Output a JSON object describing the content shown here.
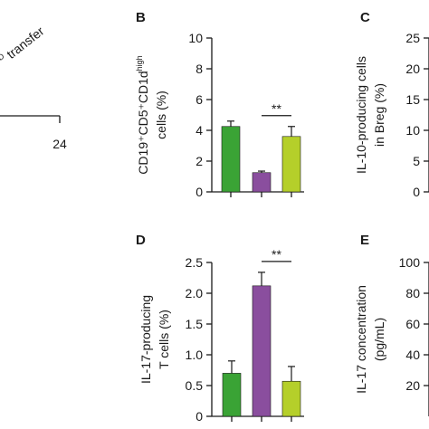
{
  "panel_a": {
    "annotation": "transfer",
    "annotation_prefix": "D",
    "x_tick": "24"
  },
  "chart_data": [
    {
      "panel": "B",
      "type": "bar",
      "ylabel_line1": "CD19⁺CD5⁺CD1d",
      "ylabel_sup": "high",
      "ylabel_line2": "cells (%)",
      "ylim": [
        0,
        10
      ],
      "yticks": [
        0,
        2,
        4,
        6,
        8,
        10
      ],
      "values": [
        4.25,
        1.25,
        3.6
      ],
      "errors": [
        0.35,
        0.1,
        0.65
      ],
      "colors": [
        "#3aa335",
        "#8a4e9e",
        "#b5cf2a"
      ],
      "significance": {
        "from": 1,
        "to": 2,
        "label": "**"
      }
    },
    {
      "panel": "C",
      "type": "bar",
      "ylabel_line1": "IL-10-producing cells",
      "ylabel_line2": "in Breg (%)",
      "ylim": [
        0,
        25
      ],
      "yticks": [
        0,
        5,
        10,
        15,
        20,
        25
      ],
      "values": [],
      "errors": [],
      "colors": []
    },
    {
      "panel": "D",
      "type": "bar",
      "ylabel_line1": "IL-17-producing",
      "ylabel_line2": "T cells (%)",
      "ylim": [
        0,
        2.5
      ],
      "yticks": [
        0,
        0.5,
        1.0,
        1.5,
        2.0,
        2.5
      ],
      "ytick_labels": [
        "0",
        "0.5",
        "1.0",
        "1.5",
        "2.0",
        "2.5"
      ],
      "values": [
        0.7,
        2.12,
        0.57
      ],
      "errors": [
        0.2,
        0.22,
        0.24
      ],
      "colors": [
        "#3aa335",
        "#8a4e9e",
        "#b5cf2a"
      ],
      "significance": {
        "from": 1,
        "to": 2,
        "label": "**"
      }
    },
    {
      "panel": "E",
      "type": "bar",
      "ylabel_line1": "IL-17 concentration",
      "ylabel_line2": "(pg/mL)",
      "ylim": [
        0,
        100
      ],
      "yticks": [
        20,
        40,
        60,
        80,
        100
      ],
      "values": [],
      "errors": [],
      "colors": []
    }
  ]
}
